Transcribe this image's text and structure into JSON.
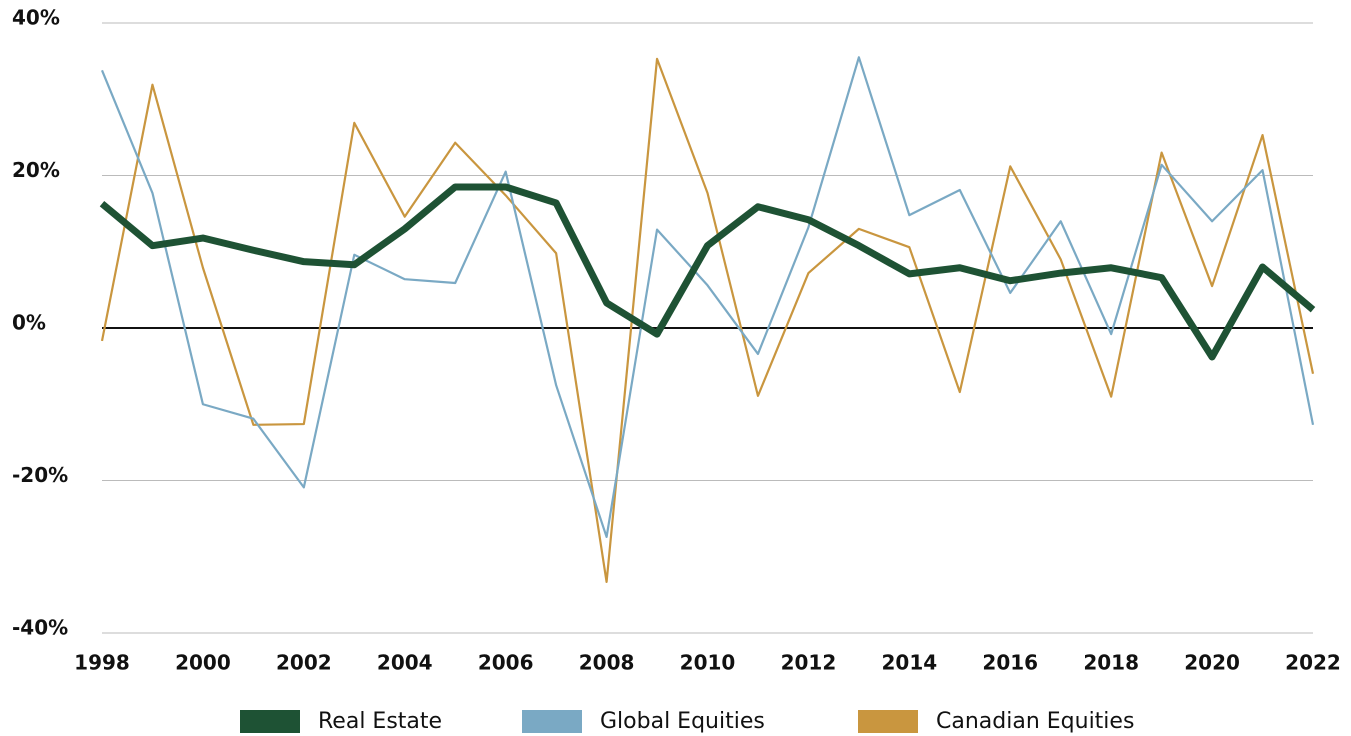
{
  "chart_data": {
    "type": "line",
    "x": [
      1998,
      1999,
      2000,
      2001,
      2002,
      2003,
      2004,
      2005,
      2006,
      2007,
      2008,
      2009,
      2010,
      2011,
      2012,
      2013,
      2014,
      2015,
      2016,
      2017,
      2018,
      2019,
      2020,
      2021,
      2022
    ],
    "xlim": [
      1998,
      2022
    ],
    "xticks": [
      1998,
      2000,
      2002,
      2004,
      2006,
      2008,
      2010,
      2012,
      2014,
      2016,
      2018,
      2020,
      2022
    ],
    "ylim": [
      -40,
      40
    ],
    "yticks": [
      {
        "value": -40,
        "label": "-40%"
      },
      {
        "value": -20,
        "label": "-20%"
      },
      {
        "value": 0,
        "label": "0%"
      },
      {
        "value": 20,
        "label": "20%"
      },
      {
        "value": 40,
        "label": "40%"
      }
    ],
    "grid": true,
    "legend": "bottom",
    "series": [
      {
        "name": "Real Estate",
        "color": "#1e5234",
        "values": [
          16.3,
          10.8,
          11.8,
          10.2,
          8.7,
          8.3,
          13.0,
          18.5,
          18.5,
          16.4,
          3.3,
          -0.8,
          10.8,
          15.9,
          14.2,
          10.8,
          7.1,
          7.9,
          6.2,
          7.2,
          7.9,
          6.6,
          -3.8,
          8.0,
          2.4
        ]
      },
      {
        "name": "Global Equities",
        "color": "#7aa9c4",
        "values": [
          33.8,
          17.7,
          -10.0,
          -11.9,
          -20.9,
          9.6,
          6.4,
          5.9,
          20.5,
          -7.5,
          -27.4,
          12.9,
          5.6,
          -3.4,
          13.2,
          35.5,
          14.8,
          18.1,
          4.6,
          14.0,
          -0.8,
          21.4,
          14.0,
          20.7,
          -12.7
        ]
      },
      {
        "name": "Canadian Equities",
        "color": "#c9963f",
        "values": [
          -1.7,
          31.9,
          7.9,
          -12.7,
          -12.6,
          26.9,
          14.6,
          24.3,
          17.4,
          9.8,
          -33.3,
          35.3,
          17.7,
          -8.9,
          7.2,
          13.0,
          10.6,
          -8.4,
          21.2,
          9.0,
          -9.0,
          23.0,
          5.5,
          25.3,
          -6.0
        ]
      }
    ]
  }
}
